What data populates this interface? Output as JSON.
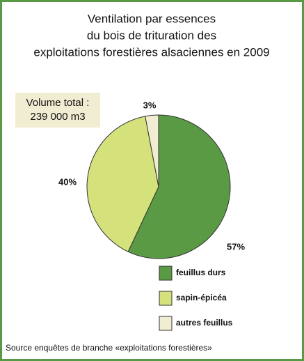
{
  "chart_data": {
    "type": "pie",
    "title": [
      "Ventilation par essences",
      "du bois de trituration des",
      "exploitations forestières alsaciennes en 2009"
    ],
    "annotation": [
      "Volume total :",
      "239 000 m3"
    ],
    "categories": [
      "feuillus durs",
      "sapin-épicéa",
      "autres feuillus"
    ],
    "values": [
      57,
      40,
      3
    ],
    "value_labels": [
      "57%",
      "40%",
      "3%"
    ],
    "colors": [
      "#5b9a45",
      "#d5e27c",
      "#f1edd2"
    ],
    "source": "Source enquêtes de branche «exploitations forestières»"
  }
}
